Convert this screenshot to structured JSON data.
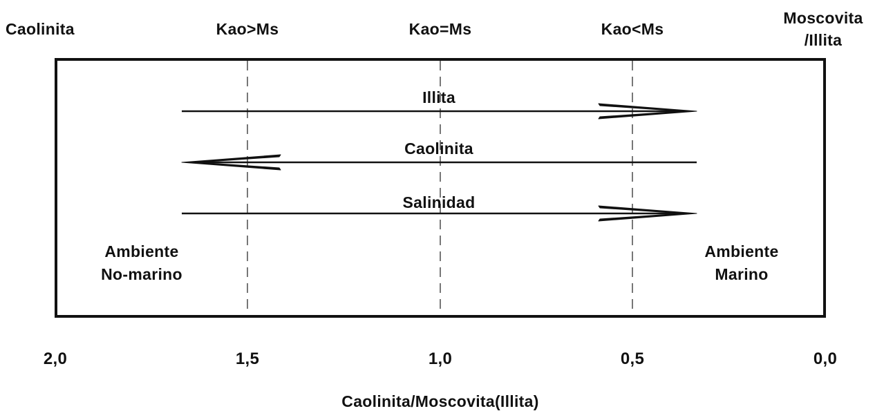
{
  "top_labels": {
    "left": "Caolinita",
    "kao_gt_ms": "Kao>Ms",
    "kao_eq_ms": "Kao=Ms",
    "kao_lt_ms": "Kao<Ms",
    "right_line1": "Moscovita",
    "right_line2": "/Illita"
  },
  "arrows": [
    {
      "label": "Illita",
      "direction": "right"
    },
    {
      "label": "Caolinita",
      "direction": "left"
    },
    {
      "label": "Salinidad",
      "direction": "right"
    }
  ],
  "environments": {
    "left_line1": "Ambiente",
    "left_line2": "No-marino",
    "right_line1": "Ambiente",
    "right_line2": "Marino"
  },
  "axis": {
    "ticks": [
      "2,0",
      "1,5",
      "1,0",
      "0,5",
      "0,0"
    ],
    "label": "Caolinita/Moscovita(Illita)"
  },
  "colors": {
    "ink": "#111111",
    "dashed_line": "#555555",
    "background": "#ffffff"
  }
}
